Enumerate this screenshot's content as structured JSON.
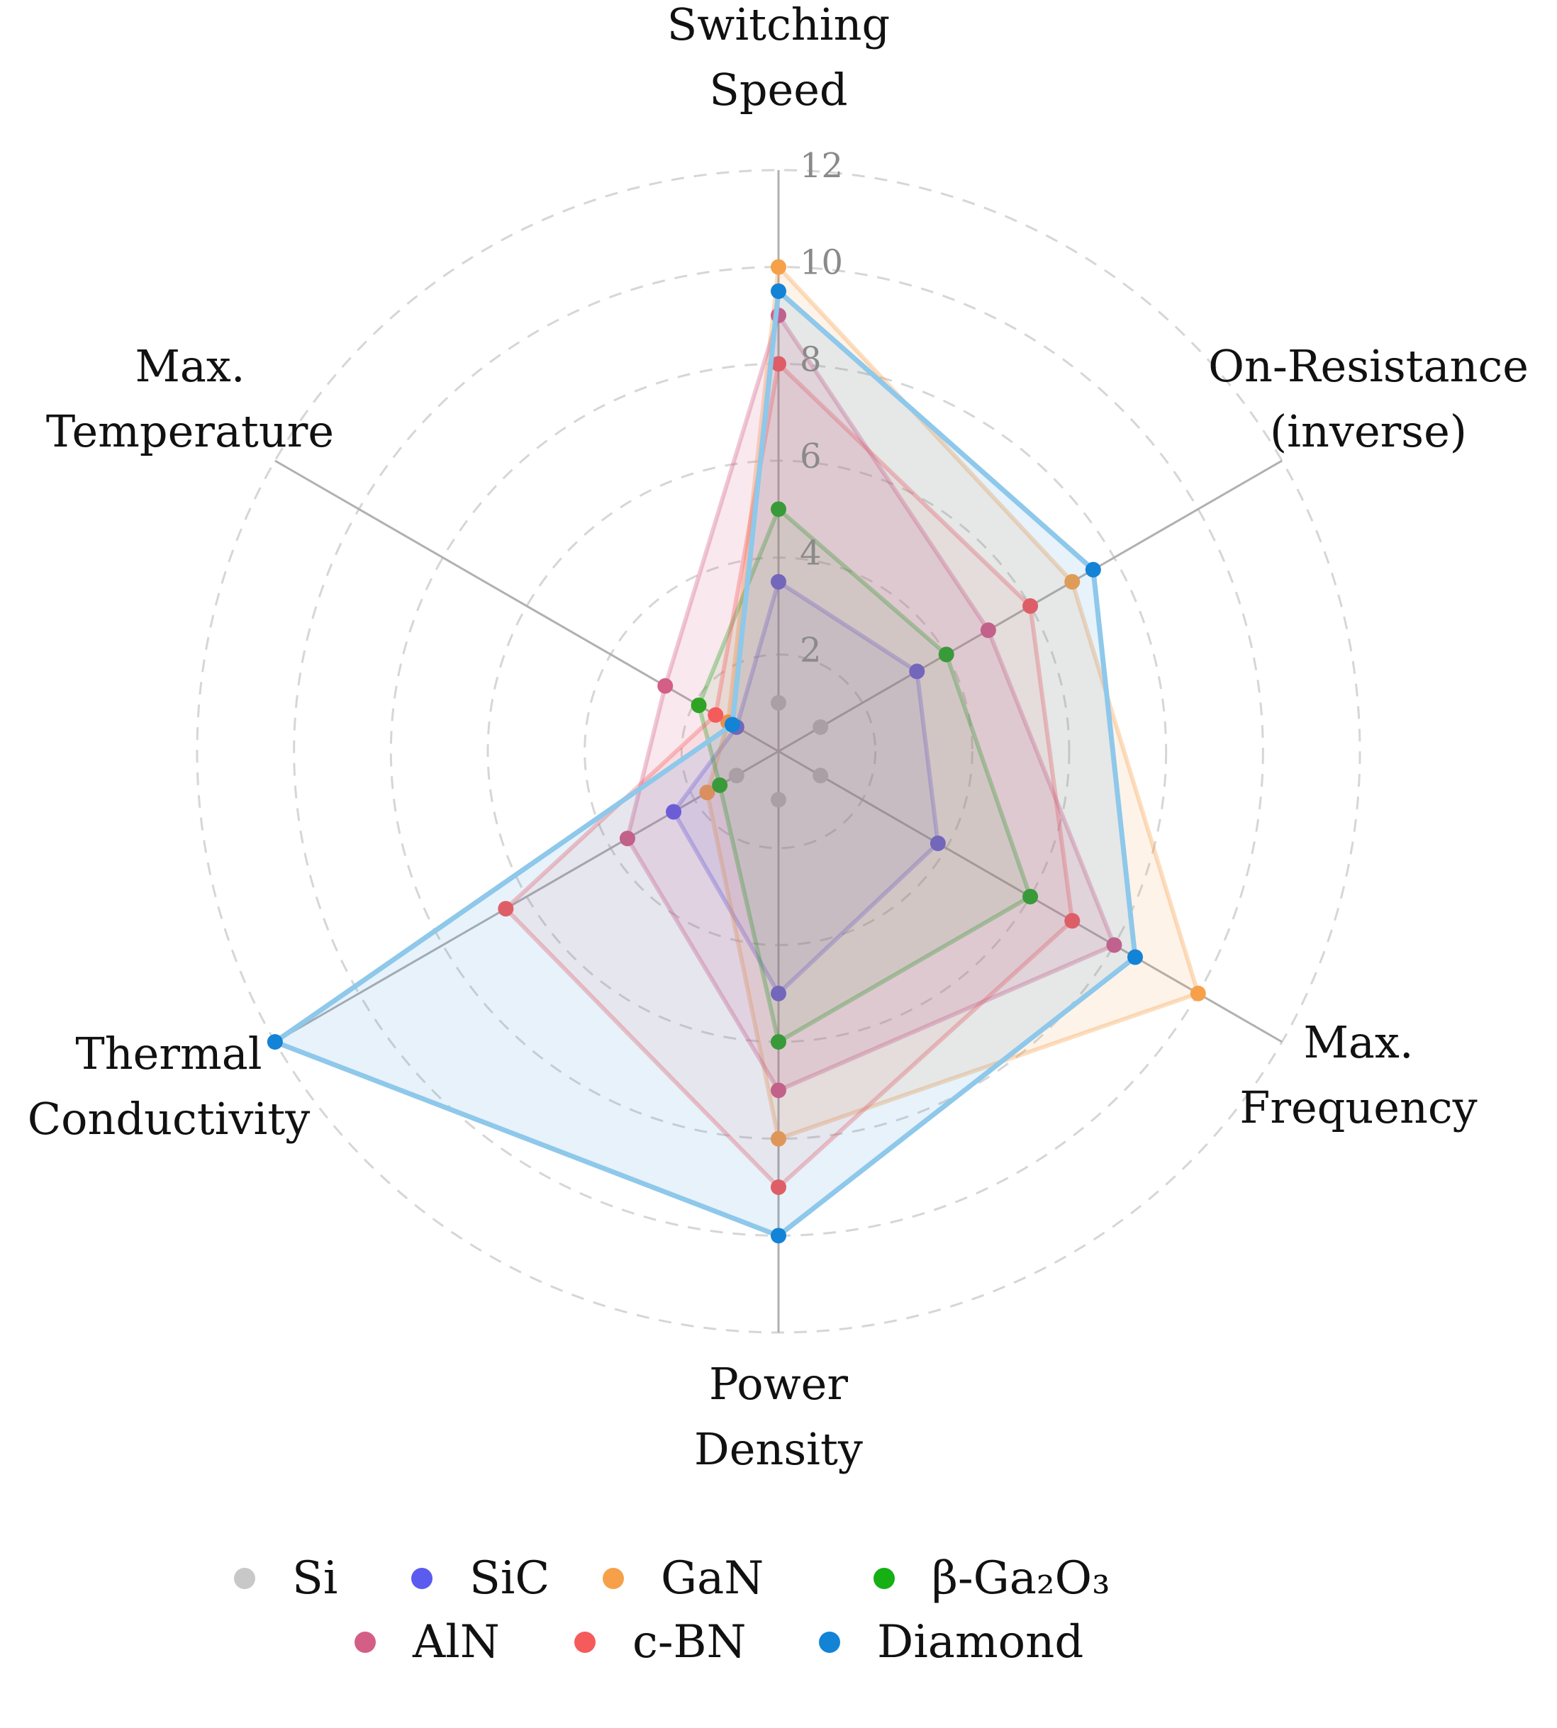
{
  "chart_data": {
    "type": "radar",
    "axes": [
      {
        "lines": [
          "Switching",
          "Speed"
        ]
      },
      {
        "lines": [
          "On-Resistance",
          "(inverse)"
        ]
      },
      {
        "lines": [
          "Max.",
          "Frequency"
        ]
      },
      {
        "lines": [
          "Power",
          "Density"
        ]
      },
      {
        "lines": [
          "Thermal",
          "Conductivity"
        ]
      },
      {
        "lines": [
          "Max.",
          "Temperature"
        ]
      }
    ],
    "rlim": [
      0,
      12
    ],
    "ticks": [
      2,
      4,
      6,
      8,
      10,
      12
    ],
    "tick_labels": [
      "2",
      "4",
      "6",
      "8",
      "10",
      "12"
    ],
    "grid": "dashed",
    "legend_position": "bottom",
    "series": [
      {
        "name": "Si",
        "color": "#c8c8c8",
        "values": [
          1,
          1,
          1,
          1,
          1,
          1
        ],
        "fill_opacity": 0.0
      },
      {
        "name": "SiC",
        "color": "#5b5bf0",
        "values": [
          3.5,
          3.3,
          3.8,
          5.0,
          2.5,
          1.0
        ],
        "fill_opacity": 0.1
      },
      {
        "name": "GaN",
        "color": "#f7a04a",
        "values": [
          10.0,
          7.0,
          10.0,
          8.0,
          1.7,
          1.2
        ],
        "fill_opacity": 0.12
      },
      {
        "name": "β-Ga₂O₃",
        "color": "#14b014",
        "values": [
          5.0,
          4.0,
          6.0,
          6.0,
          1.4,
          1.9
        ],
        "fill_opacity": 0.08
      },
      {
        "name": "AlN",
        "color": "#d45f86",
        "values": [
          9.0,
          5.0,
          8.0,
          7.0,
          3.6,
          2.7
        ],
        "fill_opacity": 0.14
      },
      {
        "name": "c-BN",
        "color": "#f55b5b",
        "values": [
          8.0,
          6.0,
          7.0,
          9.0,
          6.5,
          1.5
        ],
        "fill_opacity": 0.08
      },
      {
        "name": "Diamond",
        "color": "#1383d6",
        "values": [
          9.5,
          7.5,
          8.5,
          10.0,
          12.0,
          1.1
        ],
        "fill_opacity": 0.1,
        "line_color": "#8ec8ea"
      }
    ],
    "legend_rows": [
      [
        "Si",
        "SiC",
        "GaN",
        "β-Ga₂O₃"
      ],
      [
        "AlN",
        "c-BN",
        "Diamond"
      ]
    ]
  }
}
